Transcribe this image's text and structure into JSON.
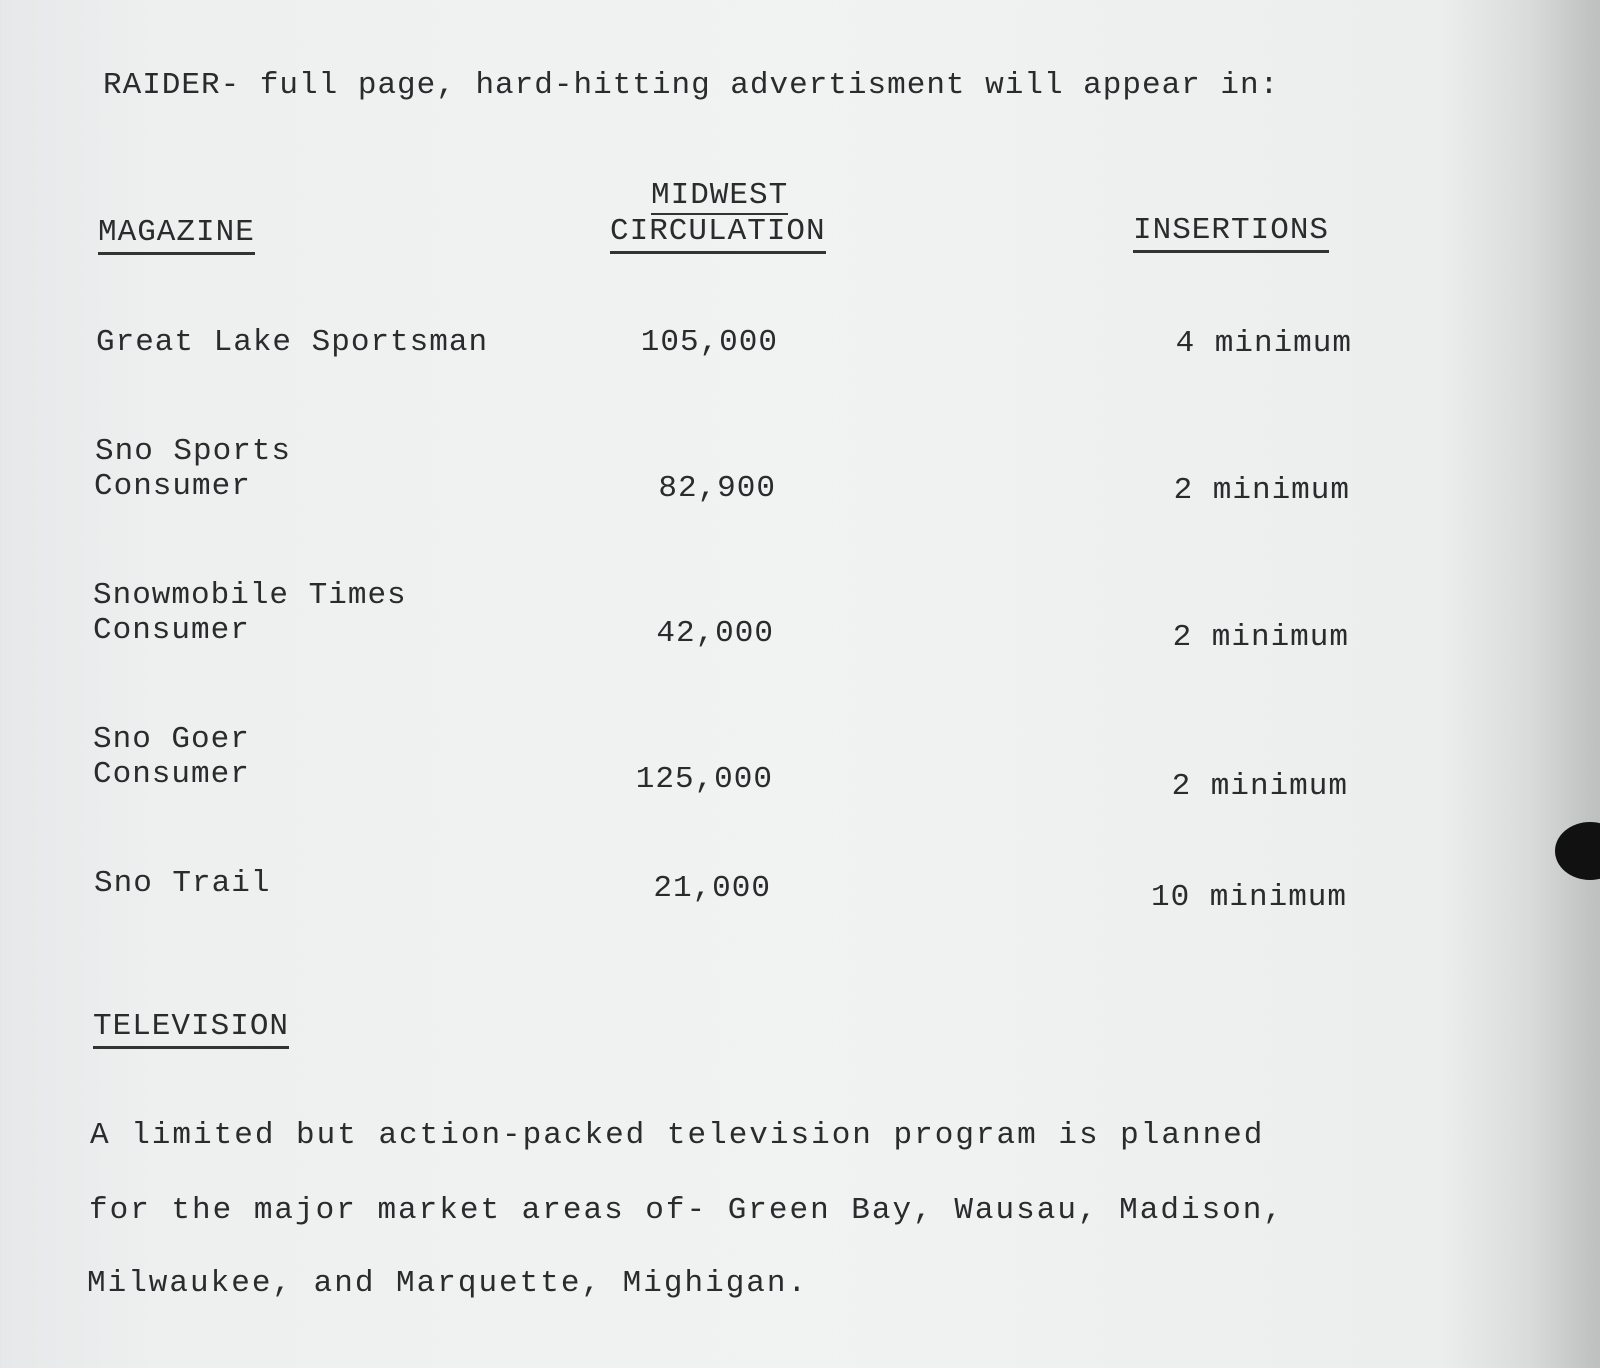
{
  "intro": "RAIDER- full page, hard-hitting advertisment will appear in:",
  "table": {
    "headers": {
      "magazine": "MAGAZINE",
      "circulation_top": "MIDWEST",
      "circulation_bottom": "CIRCULATION",
      "insertions": "INSERTIONS"
    },
    "rows": [
      {
        "name1": "Great Lake Sportsman",
        "name2": "",
        "circulation": "105,000",
        "insertions": "4 minimum"
      },
      {
        "name1": "Sno Sports",
        "name2": "Consumer",
        "circulation": "82,900",
        "insertions": "2 minimum"
      },
      {
        "name1": "Snowmobile Times",
        "name2": "Consumer",
        "circulation": "42,000",
        "insertions": "2 minimum"
      },
      {
        "name1": "Sno Goer",
        "name2": "Consumer",
        "circulation": "125,000",
        "insertions": "2 minimum"
      },
      {
        "name1": "Sno Trail",
        "name2": "",
        "circulation": "21,000",
        "insertions": "10 minimum"
      }
    ]
  },
  "television": {
    "heading": "TELEVISION",
    "lines": [
      "A limited but action-packed television program is planned",
      "for the major market areas of- Green Bay, Wausau, Madison,",
      "Milwaukee, and Marquette, Mighigan."
    ]
  }
}
